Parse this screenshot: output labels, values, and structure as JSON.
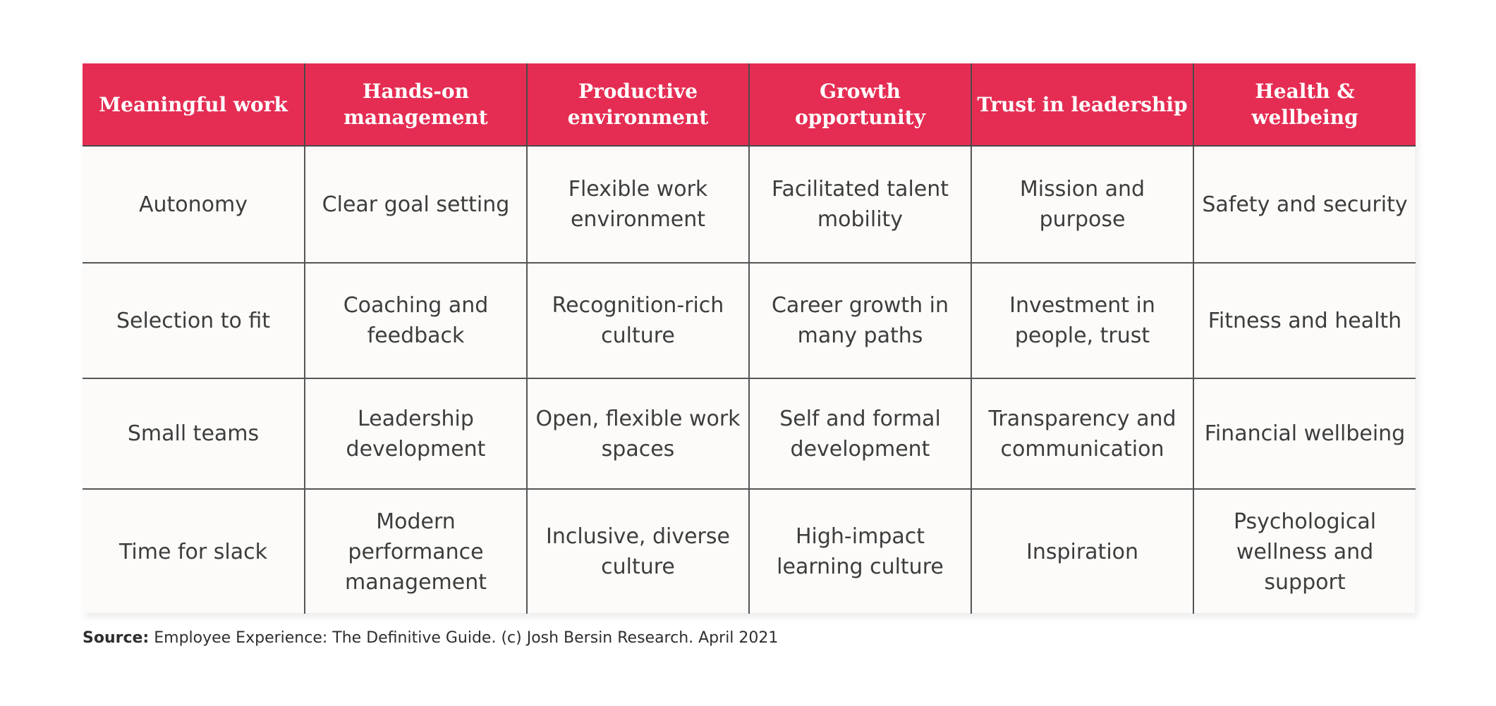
{
  "table": {
    "headers": [
      "Meaningful work",
      "Hands-on management",
      "Productive environment",
      "Growth opportunity",
      "Trust in leadership",
      "Health & wellbeing"
    ],
    "rows": [
      [
        "Autonomy",
        "Clear goal setting",
        "Flexible work environment",
        "Facilitated talent mobility",
        "Mission and purpose",
        "Safety and security"
      ],
      [
        "Selection to fit",
        "Coaching and feedback",
        "Recognition-rich culture",
        "Career growth in many paths",
        "Investment in people, trust",
        "Fitness and health"
      ],
      [
        "Small teams",
        "Leadership development",
        "Open, flexible work spaces",
        "Self and formal development",
        "Transparency and communication",
        "Financial wellbeing"
      ],
      [
        "Time for slack",
        "Modern performance management",
        "Inclusive, diverse culture",
        "High-impact learning culture",
        "Inspiration",
        "Psychological wellness and support"
      ]
    ]
  },
  "source": {
    "label": "Source:",
    "text": "Employee Experience: The Definitive Guide. (c) Josh Bersin Research. April 2021"
  },
  "colors": {
    "header_background": "#e52d53",
    "header_text": "#ffffff",
    "body_background": "#fcfbf9",
    "body_text": "#3d3d3d"
  }
}
